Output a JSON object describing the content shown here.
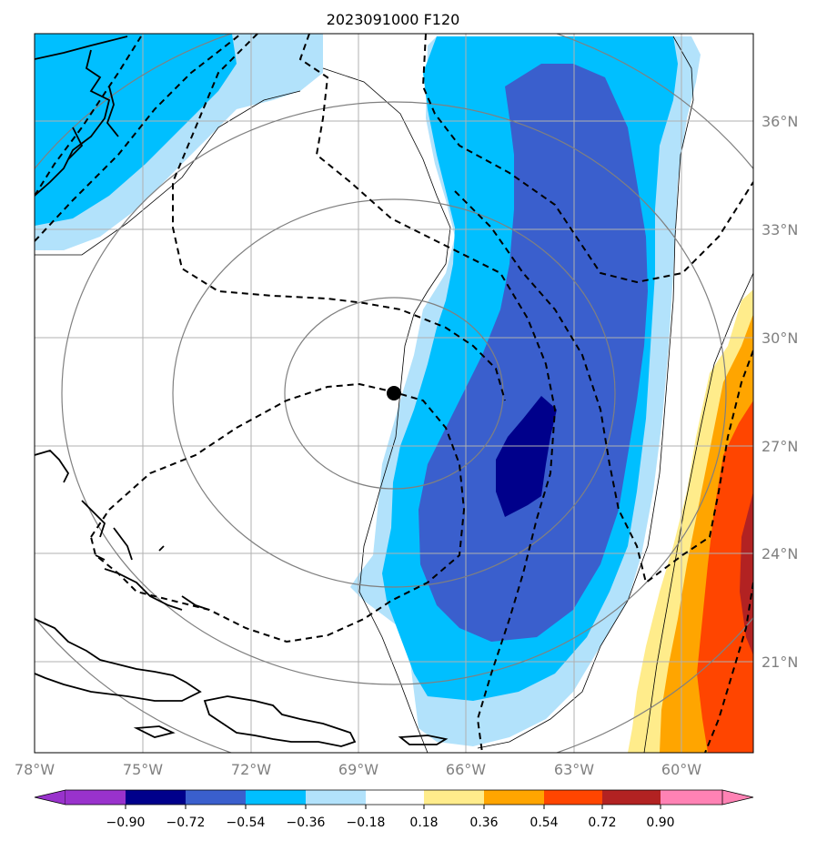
{
  "title": "2023091000 F120",
  "map": {
    "lon_range": [
      -78,
      -58
    ],
    "lat_range": [
      18,
      38
    ],
    "x_ticks": [
      {
        "lon": -78,
        "label": "78°W"
      },
      {
        "lon": -75,
        "label": "75°W"
      },
      {
        "lon": -72,
        "label": "72°W"
      },
      {
        "lon": -69,
        "label": "69°W"
      },
      {
        "lon": -66,
        "label": "66°W"
      },
      {
        "lon": -63,
        "label": "63°W"
      },
      {
        "lon": -60,
        "label": "60°W"
      }
    ],
    "y_ticks": [
      {
        "lat": 36,
        "label": "36°N"
      },
      {
        "lat": 33,
        "label": "33°N"
      },
      {
        "lat": 30,
        "label": "30°N"
      },
      {
        "lat": 27,
        "label": "27°N"
      },
      {
        "lat": 24,
        "label": "24°N"
      },
      {
        "lat": 21,
        "label": "21°N"
      }
    ],
    "storm_center": {
      "lon": -68.0,
      "lat": 28.5
    },
    "range_ring_radii_deg": [
      3,
      6,
      9,
      12
    ],
    "colors": {
      "n072_054": "#3a5fcd",
      "n090_072": "#00008b",
      "n054_036": "#00bfff",
      "n036_018": "#b2e2fb",
      "p018_036": "#ffec8b",
      "p036_054": "#ffa500",
      "p054_072": "#ff4500",
      "p072_090": "#b22222",
      "gt090": "#ff82b4",
      "lt_n090": "#9932cc",
      "grid": "#b0b0b0",
      "ring": "#808080"
    }
  },
  "colorbar": {
    "boundaries": [
      "−0.90",
      "−0.72",
      "−0.54",
      "−0.36",
      "−0.18",
      "0.18",
      "0.36",
      "0.54",
      "0.72",
      "0.90"
    ],
    "colors": [
      "#00008b",
      "#3a5fcd",
      "#00bfff",
      "#b2e2fb",
      "#ffffff",
      "#ffec8b",
      "#ffa500",
      "#ff4500",
      "#b22222"
    ],
    "under_color": "#9932cc",
    "over_color": "#ff82b4"
  }
}
